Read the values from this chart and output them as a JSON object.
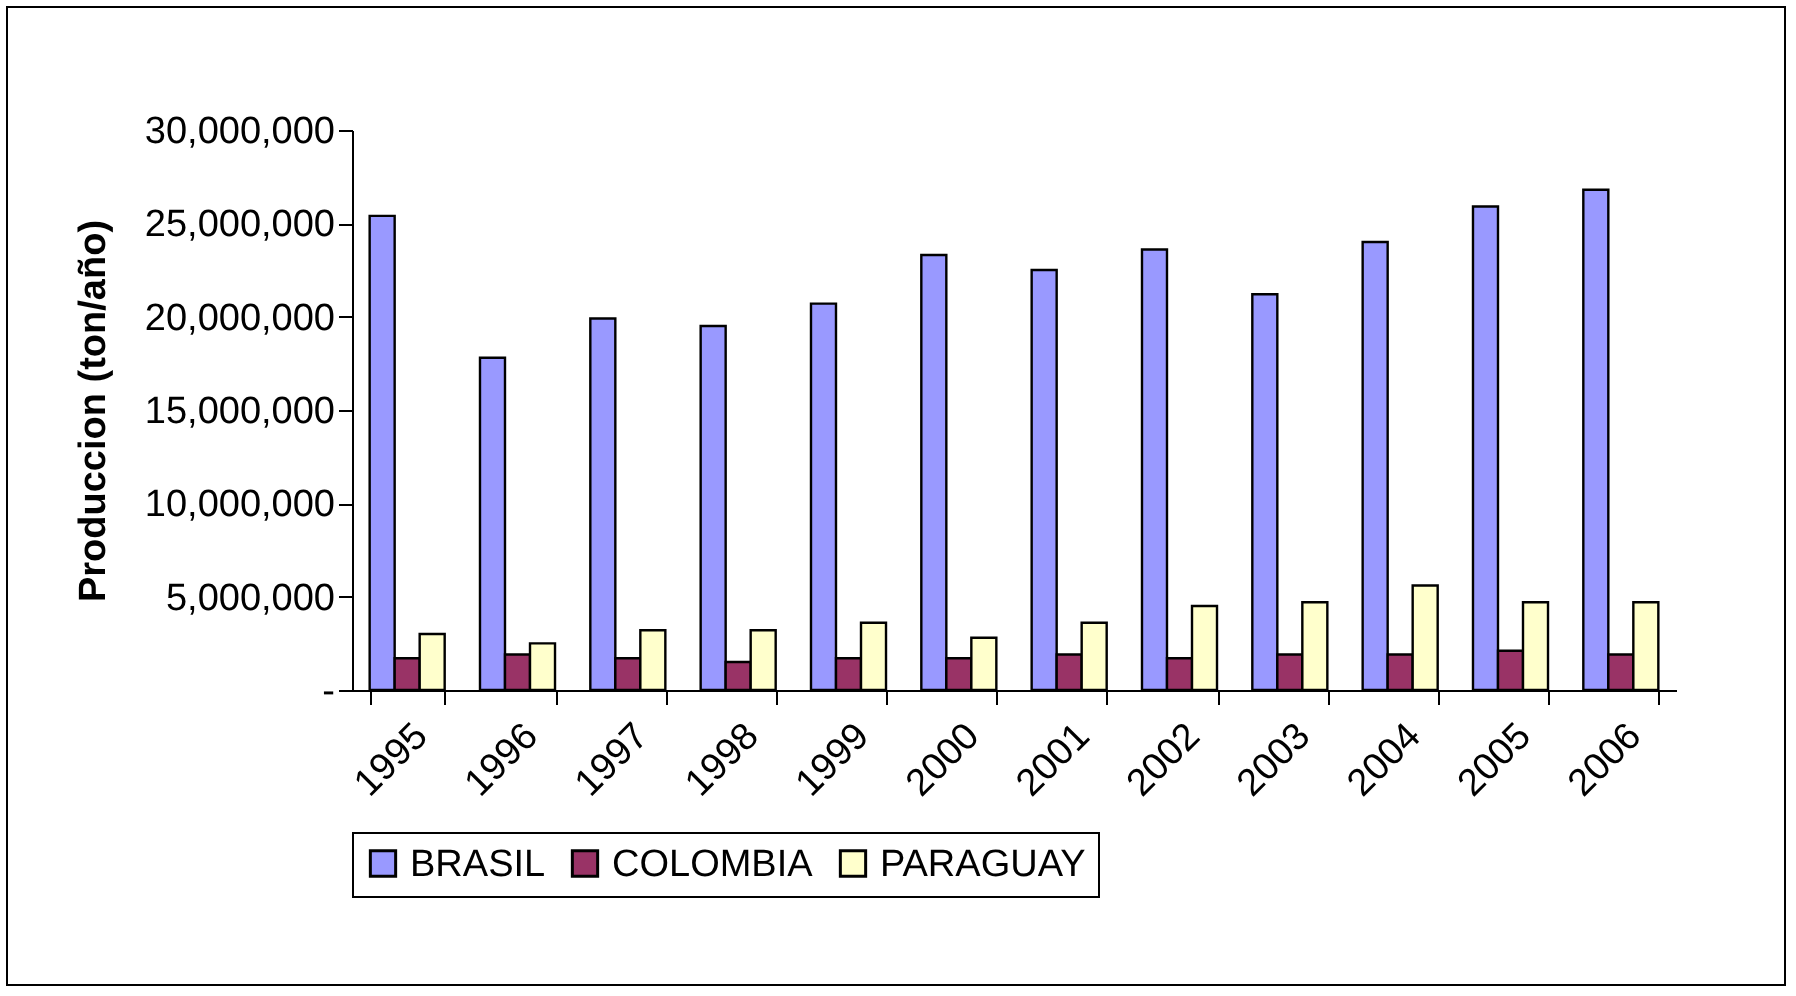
{
  "chart_data": {
    "type": "bar",
    "ylabel": "Produccion  (ton/año)",
    "categories": [
      "1995",
      "1996",
      "1997",
      "1998",
      "1999",
      "2000",
      "2001",
      "2002",
      "2003",
      "2004",
      "2005",
      "2006"
    ],
    "series": [
      {
        "name": "BRASIL",
        "color": "#9999ff",
        "values": [
          25400000,
          17800000,
          19900000,
          19500000,
          20700000,
          23300000,
          22500000,
          23600000,
          21200000,
          24000000,
          25900000,
          26800000
        ]
      },
      {
        "name": "COLOMBIA",
        "color": "#993366",
        "values": [
          1700000,
          1900000,
          1700000,
          1500000,
          1700000,
          1700000,
          1900000,
          1700000,
          1900000,
          1900000,
          2100000,
          1900000
        ]
      },
      {
        "name": "PARAGUAY",
        "color": "#ffffcc",
        "values": [
          3000000,
          2500000,
          3200000,
          3200000,
          3600000,
          2800000,
          3600000,
          4500000,
          4700000,
          5600000,
          4700000,
          4700000
        ]
      }
    ],
    "ylim": [
      0,
      30000000
    ],
    "yticks": [
      {
        "value": 0,
        "label": "-"
      },
      {
        "value": 5000000,
        "label": "5,000,000"
      },
      {
        "value": 10000000,
        "label": "10,000,000"
      },
      {
        "value": 15000000,
        "label": "15,000,000"
      },
      {
        "value": 20000000,
        "label": "20,000,000"
      },
      {
        "value": 25000000,
        "label": "25,000,000"
      },
      {
        "value": 30000000,
        "label": "30,000,000"
      }
    ],
    "grid": false,
    "legend": "bottom"
  }
}
